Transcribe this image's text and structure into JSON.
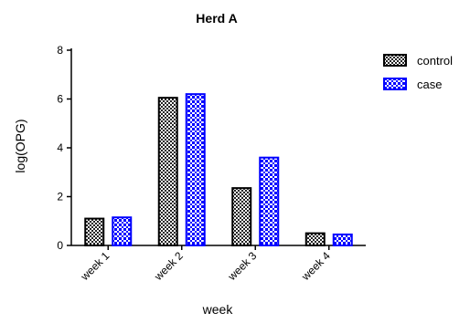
{
  "chart_data": {
    "type": "bar",
    "title": "Herd A",
    "xlabel": "week",
    "ylabel": "log(OPG)",
    "categories": [
      "week 1",
      "week 2",
      "week 3",
      "week 4"
    ],
    "ylim": [
      0,
      8
    ],
    "yticks": [
      0,
      2,
      4,
      6,
      8
    ],
    "grid": false,
    "legend_position": "top-right",
    "series": [
      {
        "name": "control",
        "values": [
          1.1,
          6.05,
          2.35,
          0.5
        ],
        "color": "#000000",
        "pattern": "black-checker"
      },
      {
        "name": "case",
        "values": [
          1.15,
          6.2,
          3.6,
          0.45
        ],
        "color": "#0000ff",
        "pattern": "blue-checker"
      }
    ]
  }
}
